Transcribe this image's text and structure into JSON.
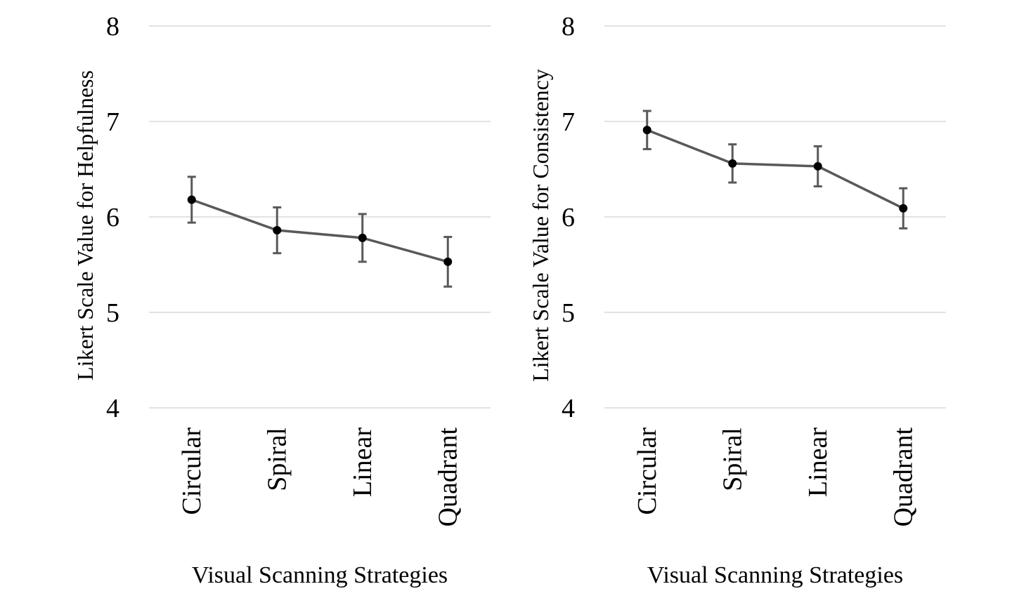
{
  "colors": {
    "line": "#595959",
    "marker": "#000000",
    "gridline": "#d9d9d9"
  },
  "chart_data": [
    {
      "type": "line",
      "categories": [
        "Circular",
        "Spiral",
        "Linear",
        "Quadrant"
      ],
      "series": [
        {
          "values": [
            6.18,
            5.86,
            5.78,
            5.53
          ],
          "error": [
            0.24,
            0.24,
            0.25,
            0.26
          ]
        }
      ],
      "ylabel": "Likert Scale Value for Helpfulness",
      "xlabel": "Visual Scanning Strategies",
      "ylim": [
        4,
        8
      ],
      "yticks": [
        "4",
        "5",
        "6",
        "7",
        "8"
      ],
      "grid": true,
      "legend": "none"
    },
    {
      "type": "line",
      "categories": [
        "Circular",
        "Spiral",
        "Linear",
        "Quadrant"
      ],
      "series": [
        {
          "values": [
            6.91,
            6.56,
            6.53,
            6.09
          ],
          "error": [
            0.2,
            0.2,
            0.21,
            0.21
          ]
        }
      ],
      "ylabel": "Likert Scale Value for Consistency",
      "xlabel": "Visual Scanning Strategies",
      "ylim": [
        4,
        8
      ],
      "yticks": [
        "4",
        "5",
        "6",
        "7",
        "8"
      ],
      "grid": true,
      "legend": "none"
    }
  ]
}
